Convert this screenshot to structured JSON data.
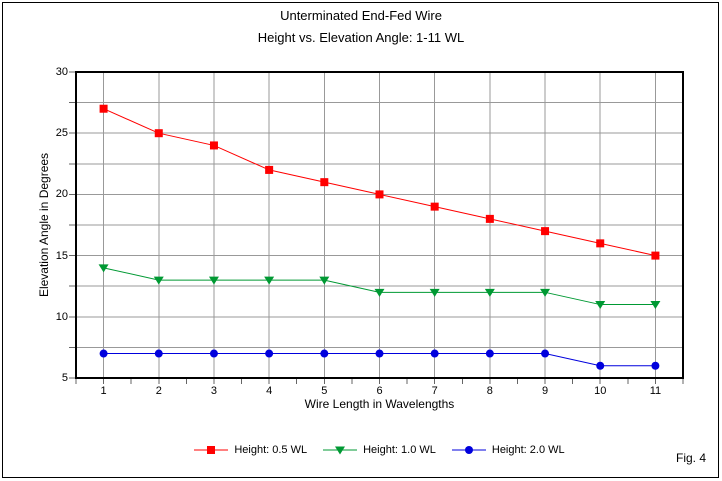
{
  "chart_data": {
    "type": "line",
    "title": "Unterminated End-Fed Wire",
    "subtitle": "Height vs. Elevation Angle: 1-11 WL",
    "xlabel": "Wire Length in Wavelengths",
    "ylabel": "Elevation Angle in Degrees",
    "figure_label": "Fig. 4",
    "x": [
      1,
      2,
      3,
      4,
      5,
      6,
      7,
      8,
      9,
      10,
      11
    ],
    "xlim": [
      0.5,
      11.5
    ],
    "ylim": [
      5,
      30
    ],
    "y_tick_labels": [
      30,
      25,
      20,
      15,
      10,
      5
    ],
    "y_grid_step": 2.5,
    "x_minor_tick_step": 0.5,
    "grid_on": true,
    "grid_color": "#999999",
    "tick_color": "#666666",
    "frame_color": "#000000",
    "legend_position": "bottom-center",
    "series": [
      {
        "name": "Height: 0.5 WL",
        "color": "#ff0000",
        "marker": "square",
        "values": [
          27,
          25,
          24,
          22,
          21,
          20,
          19,
          18,
          17,
          16,
          15
        ]
      },
      {
        "name": "Height: 1.0 WL",
        "color": "#009933",
        "marker": "triangle-down",
        "values": [
          14,
          13,
          13,
          13,
          13,
          12,
          12,
          12,
          12,
          11,
          11
        ]
      },
      {
        "name": "Height: 2.0 WL",
        "color": "#0000dd",
        "marker": "circle",
        "values": [
          7,
          7,
          7,
          7,
          7,
          7,
          7,
          7,
          7,
          6,
          6
        ]
      }
    ]
  }
}
